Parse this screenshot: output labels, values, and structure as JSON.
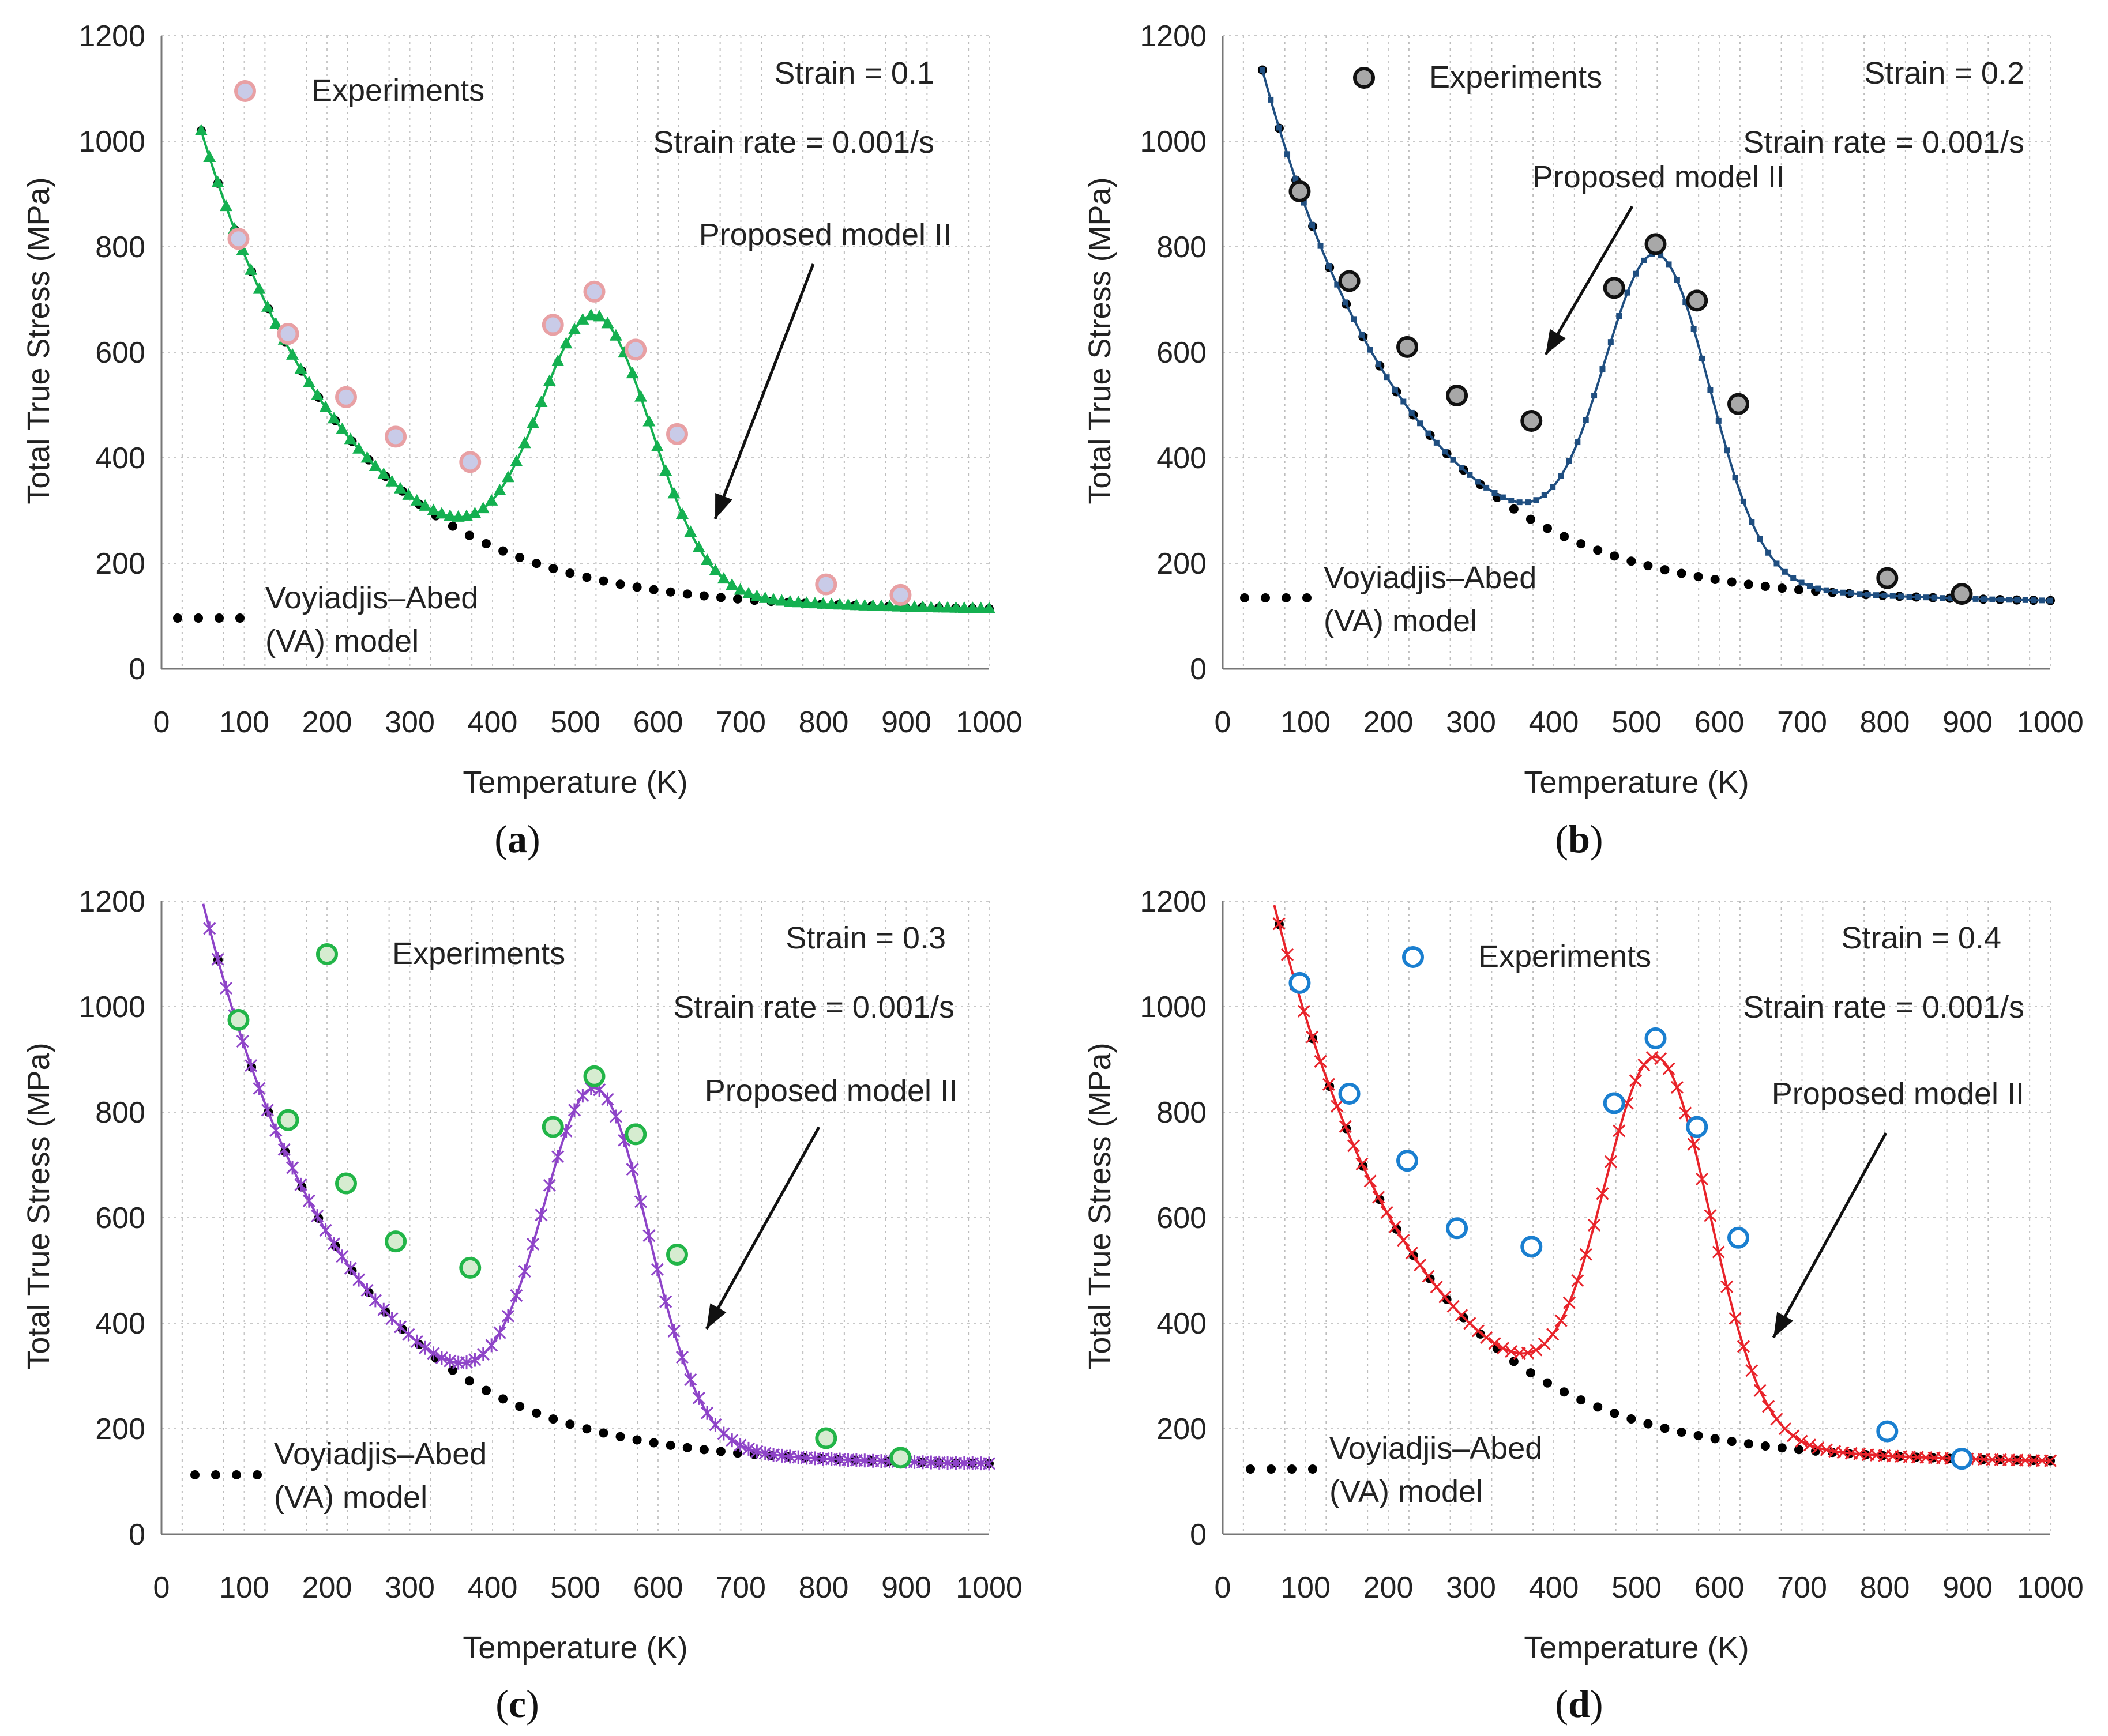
{
  "figure": {
    "captions": [
      "(a)",
      "(b)",
      "(c)",
      "(d)"
    ]
  },
  "chart_data": [
    {
      "panel": "a",
      "type": "line",
      "xlabel": "Temperature (K)",
      "ylabel": "Total True Stress (MPa)",
      "xlim": [
        0,
        1000
      ],
      "ylim": [
        0,
        1200
      ],
      "xticks": [
        "0",
        "100",
        "200",
        "300",
        "400",
        "500",
        "600",
        "700",
        "800",
        "900",
        "1000"
      ],
      "yticks": [
        "0",
        "200",
        "400",
        "600",
        "800",
        "1000",
        "1200"
      ],
      "grid": true,
      "annotations": {
        "strain": "Strain = 0.1",
        "strain_rate": "Strain rate = 0.001/s",
        "model_label": "Proposed model II",
        "va_label_line1": "Voyiadjis–Abed",
        "va_label_line2": "(VA) model",
        "experiments_label": "Experiments"
      },
      "series": [
        {
          "name": "Experiments",
          "kind": "scatter",
          "marker": "circle",
          "fill": "#c9cbe8",
          "stroke": "#e8a0a4",
          "x": [
            93,
            153,
            223,
            283,
            373,
            473,
            523,
            573,
            623,
            803,
            893
          ],
          "y": [
            815,
            635,
            515,
            440,
            392,
            652,
            715,
            605,
            445,
            160,
            140
          ]
        },
        {
          "name": "Voyiadjis–Abed (VA) model",
          "kind": "dots",
          "color": "#000000",
          "x0": 48,
          "x1": 1000,
          "n": 48,
          "y_inf": 110,
          "y_amp": 910,
          "decay": 175
        },
        {
          "name": "Proposed model II",
          "kind": "line",
          "marker": "triangle",
          "color": "#14b050",
          "x0": 48,
          "x1": 1000,
          "n": 96,
          "y_inf": 110,
          "y_amp": 910,
          "decay": 175,
          "peak_center": 525,
          "peak_height": 500,
          "peak_width": 95
        }
      ]
    },
    {
      "panel": "b",
      "type": "line",
      "xlabel": "Temperature (K)",
      "ylabel": "Total True Stress (MPa)",
      "xlim": [
        0,
        1000
      ],
      "ylim": [
        0,
        1200
      ],
      "xticks": [
        "0",
        "100",
        "200",
        "300",
        "400",
        "500",
        "600",
        "700",
        "800",
        "900",
        "1000"
      ],
      "yticks": [
        "0",
        "200",
        "400",
        "600",
        "800",
        "1000",
        "1200"
      ],
      "grid": true,
      "annotations": {
        "strain": "Strain = 0.2",
        "strain_rate": "Strain rate = 0.001/s",
        "model_label": "Proposed model II",
        "va_label_line1": "Voyiadjis–Abed",
        "va_label_line2": "(VA) model",
        "experiments_label": "Experiments"
      },
      "series": [
        {
          "name": "Experiments",
          "kind": "scatter",
          "marker": "circle",
          "fill": "#a8a8a8",
          "stroke": "#111111",
          "x": [
            93,
            153,
            223,
            283,
            373,
            473,
            523,
            573,
            623,
            803,
            893
          ],
          "y": [
            905,
            735,
            610,
            518,
            470,
            722,
            805,
            698,
            502,
            172,
            142
          ]
        },
        {
          "name": "Voyiadjis–Abed (VA) model",
          "kind": "dots",
          "color": "#000000",
          "x0": 48,
          "x1": 1000,
          "n": 48,
          "y_inf": 125,
          "y_amp": 1010,
          "decay": 175
        },
        {
          "name": "Proposed model II",
          "kind": "line",
          "marker": "square",
          "color": "#1f4e80",
          "x0": 48,
          "x1": 1000,
          "n": 96,
          "y_inf": 125,
          "y_amp": 1010,
          "decay": 175,
          "peak_center": 525,
          "peak_height": 595,
          "peak_width": 90
        }
      ]
    },
    {
      "panel": "c",
      "type": "line",
      "xlabel": "Temperature (K)",
      "ylabel": "Total True Stress (MPa)",
      "xlim": [
        0,
        1000
      ],
      "ylim": [
        0,
        1200
      ],
      "xticks": [
        "0",
        "100",
        "200",
        "300",
        "400",
        "500",
        "600",
        "700",
        "800",
        "900",
        "1000"
      ],
      "yticks": [
        "0",
        "200",
        "400",
        "600",
        "800",
        "1000",
        "1200"
      ],
      "grid": true,
      "annotations": {
        "strain": "Strain = 0.3",
        "strain_rate": "Strain rate = 0.001/s",
        "model_label": "Proposed model II",
        "va_label_line1": "Voyiadjis–Abed",
        "va_label_line2": "(VA) model",
        "experiments_label": "Experiments"
      },
      "series": [
        {
          "name": "Experiments",
          "kind": "scatter",
          "marker": "circle",
          "fill": "#d6ecd0",
          "stroke": "#22b548",
          "x": [
            93,
            153,
            223,
            283,
            373,
            473,
            523,
            573,
            623,
            803,
            893
          ],
          "y": [
            975,
            785,
            665,
            555,
            505,
            772,
            868,
            758,
            530,
            182,
            145
          ]
        },
        {
          "name": "Voyiadjis–Abed (VA) model",
          "kind": "dots",
          "color": "#000000",
          "x0": 48,
          "x1": 1000,
          "n": 48,
          "y_inf": 130,
          "y_amp": 1080,
          "decay": 170
        },
        {
          "name": "Proposed model II",
          "kind": "line",
          "marker": "star",
          "color": "#8e44c8",
          "x0": 48,
          "x1": 1000,
          "n": 96,
          "y_inf": 130,
          "y_amp": 1080,
          "decay": 170,
          "peak_center": 525,
          "peak_height": 650,
          "peak_width": 90
        }
      ]
    },
    {
      "panel": "d",
      "type": "line",
      "xlabel": "Temperature (K)",
      "ylabel": "Total True Stress (MPa)",
      "xlim": [
        0,
        1000
      ],
      "ylim": [
        0,
        1200
      ],
      "xticks": [
        "0",
        "100",
        "200",
        "300",
        "400",
        "500",
        "600",
        "700",
        "800",
        "900",
        "1000"
      ],
      "yticks": [
        "0",
        "200",
        "400",
        "600",
        "800",
        "1000",
        "1200"
      ],
      "grid": true,
      "annotations": {
        "strain": "Strain = 0.4",
        "strain_rate": "Strain rate = 0.001/s",
        "model_label": "Proposed model II",
        "va_label_line1": "Voyiadjis–Abed",
        "va_label_line2": "(VA) model",
        "experiments_label": "Experiments"
      },
      "series": [
        {
          "name": "Experiments",
          "kind": "scatter",
          "marker": "circle",
          "fill": "#ffffff",
          "stroke": "#1a7fd0",
          "x": [
            93,
            153,
            223,
            283,
            373,
            473,
            523,
            573,
            623,
            803,
            893
          ],
          "y": [
            1045,
            835,
            708,
            580,
            545,
            817,
            940,
            772,
            562,
            195,
            143
          ]
        },
        {
          "name": "Voyiadjis–Abed (VA) model",
          "kind": "dots",
          "color": "#000000",
          "x0": 48,
          "x1": 1000,
          "n": 48,
          "y_inf": 135,
          "y_amp": 1150,
          "decay": 170
        },
        {
          "name": "Proposed model II",
          "kind": "line",
          "marker": "x",
          "color": "#e8232a",
          "x0": 48,
          "x1": 1000,
          "n": 96,
          "y_inf": 135,
          "y_amp": 1150,
          "decay": 170,
          "peak_center": 525,
          "peak_height": 700,
          "peak_width": 90
        }
      ]
    }
  ]
}
